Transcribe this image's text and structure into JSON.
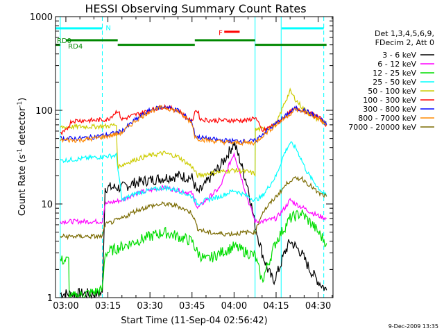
{
  "chart_data": {
    "type": "line",
    "title": "HESSI Observing Summary Count Rates",
    "xlabel": "Start Time (11-Sep-04 02:56:42)",
    "ylabel_parts": [
      "Count Rate (s",
      "-1",
      " detector",
      "-1",
      ")"
    ],
    "y_scale": "log",
    "ylim": [
      1,
      1000
    ],
    "xlim_minutes": [
      -3.7,
      95.3
    ],
    "x_ticks": [
      {
        "value": 0,
        "label": "03:00"
      },
      {
        "value": 15,
        "label": "03:15"
      },
      {
        "value": 30,
        "label": "03:30"
      },
      {
        "value": 45,
        "label": "03:45"
      },
      {
        "value": 60,
        "label": "04:00"
      },
      {
        "value": 75,
        "label": "04:15"
      },
      {
        "value": 90,
        "label": "04:30"
      }
    ],
    "y_ticks": [
      {
        "value": 1,
        "label": "1"
      },
      {
        "value": 10,
        "label": "10"
      },
      {
        "value": 100,
        "label": "100"
      },
      {
        "value": 1000,
        "label": "1000"
      }
    ],
    "legend": {
      "placement": "right",
      "header": [
        "Det 1,3,4,5,6,9,",
        "FDecim 2, Att 0"
      ],
      "items": [
        {
          "label": "3 - 6 keV",
          "color": "#000000"
        },
        {
          "label": "6 - 12 keV",
          "color": "#ff00ff"
        },
        {
          "label": "12 - 25 keV",
          "color": "#00dd00"
        },
        {
          "label": "25 - 50 keV",
          "color": "#00ffff"
        },
        {
          "label": "50 - 100 keV",
          "color": "#cccc00"
        },
        {
          "label": "100 - 300 keV",
          "color": "#ff0000"
        },
        {
          "label": "300 - 800 keV",
          "color": "#0000ff"
        },
        {
          "label": "800 - 7000 keV",
          "color": "#ff8800"
        },
        {
          "label": "7000 - 20000 keV",
          "color": "#7a6a00"
        }
      ]
    },
    "series": [
      {
        "name": "3 - 6 keV",
        "color": "#000000",
        "x": [
          -2,
          13,
          14,
          20,
          25,
          30,
          35,
          40,
          45,
          47,
          49,
          52,
          55,
          58,
          60,
          62,
          65,
          67.5,
          70,
          72,
          74,
          76,
          78,
          80,
          82,
          84,
          87,
          90,
          93
        ],
        "y": [
          1.1,
          1.1,
          15,
          15,
          17,
          18,
          19,
          20,
          19,
          13,
          15,
          20,
          25,
          35,
          45,
          30,
          15,
          6,
          3,
          2,
          1.5,
          2,
          3,
          4,
          3.5,
          3,
          2,
          1.5,
          1.2
        ]
      },
      {
        "name": "6 - 12 keV",
        "color": "#ff00ff",
        "x": [
          -2,
          13,
          14,
          20,
          25,
          30,
          35,
          40,
          45,
          47,
          50,
          55,
          58,
          60,
          62,
          65,
          67.5,
          70,
          75,
          78,
          80,
          82,
          85,
          88,
          90,
          93
        ],
        "y": [
          6.5,
          6.5,
          10,
          11,
          13,
          14,
          15,
          14,
          13,
          9,
          11,
          15,
          25,
          35,
          22,
          11,
          6.5,
          6.5,
          7,
          9,
          11,
          10,
          9,
          8,
          7.5,
          7
        ]
      },
      {
        "name": "12 - 25 keV",
        "color": "#00dd00",
        "x": [
          -2,
          1,
          1.2,
          13,
          14,
          20,
          25,
          30,
          35,
          40,
          45,
          47,
          50,
          55,
          60,
          65,
          67.5,
          70,
          75,
          80,
          84,
          88,
          90,
          93
        ],
        "y": [
          2.5,
          2.5,
          1,
          1.2,
          3,
          3.5,
          4,
          4.5,
          5,
          4.5,
          4,
          3,
          2.5,
          3,
          3.5,
          3,
          2.8,
          1.5,
          4,
          7,
          8,
          6,
          5,
          3.8
        ]
      },
      {
        "name": "25 - 50 keV",
        "color": "#00ffff",
        "x": [
          -2,
          13,
          18,
          20,
          25,
          30,
          35,
          40,
          45,
          47,
          50,
          55,
          60,
          65,
          67.5,
          70,
          75,
          78,
          80,
          82,
          84,
          86,
          88,
          90,
          93
        ],
        "y": [
          29,
          32,
          33,
          11,
          13,
          14,
          15,
          14,
          12,
          10,
          11,
          12,
          14,
          12,
          11,
          12,
          20,
          35,
          45,
          40,
          30,
          22,
          18,
          15,
          12
        ]
      },
      {
        "name": "50 - 100 keV",
        "color": "#cccc00",
        "x": [
          -2,
          5,
          10,
          15,
          18,
          18.5,
          25,
          30,
          35,
          40,
          45,
          47,
          50,
          55,
          60,
          65,
          67.5,
          67.6,
          72,
          75,
          78,
          80,
          82,
          84,
          87,
          90,
          93
        ],
        "y": [
          66,
          67,
          67,
          68,
          70,
          25,
          30,
          33,
          35,
          32,
          25,
          20,
          21,
          22,
          23,
          22,
          21,
          62,
          65,
          70,
          120,
          160,
          130,
          110,
          90,
          80,
          75
        ]
      },
      {
        "name": "100 - 300 keV",
        "color": "#ff0000",
        "x": [
          -2,
          0,
          2,
          5,
          10,
          15,
          18.5,
          20,
          25,
          30,
          35,
          40,
          45,
          46,
          47,
          48,
          52,
          60,
          65,
          67.5,
          70,
          75,
          80,
          82,
          85,
          90,
          93
        ],
        "y": [
          55,
          60,
          77,
          78,
          78,
          80,
          100,
          80,
          90,
          100,
          110,
          100,
          75,
          98,
          99,
          80,
          78,
          78,
          78,
          85,
          60,
          72,
          95,
          105,
          100,
          85,
          70
        ]
      },
      {
        "name": "300 - 800 keV",
        "color": "#0000ff",
        "x": [
          -2,
          5,
          10,
          15,
          18.5,
          20,
          25,
          30,
          35,
          40,
          45,
          46,
          47,
          50,
          55,
          60,
          65,
          67.5,
          70,
          75,
          80,
          82,
          85,
          90,
          93
        ],
        "y": [
          50,
          50,
          52,
          55,
          58,
          60,
          80,
          100,
          110,
          100,
          75,
          55,
          52,
          50,
          48,
          47,
          47,
          47,
          55,
          72,
          95,
          105,
          100,
          85,
          70
        ]
      },
      {
        "name": "800 - 7000 keV",
        "color": "#ff8800",
        "x": [
          -2,
          5,
          10,
          15,
          18.5,
          20,
          25,
          30,
          35,
          40,
          45,
          46,
          47,
          50,
          55,
          60,
          65,
          67.5,
          70,
          75,
          80,
          82,
          85,
          90,
          93
        ],
        "y": [
          48,
          48,
          50,
          53,
          56,
          58,
          78,
          98,
          108,
          98,
          73,
          53,
          50,
          48,
          46,
          45,
          45,
          45,
          53,
          70,
          92,
          102,
          97,
          82,
          68
        ]
      },
      {
        "name": "7000 - 20000 keV",
        "color": "#7a6a00",
        "x": [
          -2,
          13,
          14,
          20,
          25,
          30,
          35,
          40,
          45,
          47,
          50,
          55,
          60,
          65,
          67.5,
          70,
          75,
          80,
          84,
          88,
          90,
          93
        ],
        "y": [
          4.5,
          4.5,
          6,
          7,
          8.5,
          9.5,
          10,
          9.5,
          8,
          5.5,
          5,
          4.8,
          4.8,
          5,
          5,
          8,
          12,
          18,
          19,
          15,
          13,
          12
        ]
      }
    ],
    "vertical_lines": [
      {
        "x": -2,
        "style": "solid",
        "color": "#00ffff"
      },
      {
        "x": 13,
        "style": "dashed",
        "color": "#00ffff"
      },
      {
        "x": 67.5,
        "style": "solid",
        "color": "#00ffff"
      },
      {
        "x": 76.8,
        "style": "solid",
        "color": "#00ffff"
      },
      {
        "x": 92,
        "style": "dashed",
        "color": "#00ffff"
      }
    ],
    "status_bars": [
      {
        "x0": -3.7,
        "x1": 13,
        "y": 750,
        "color": "#00ffff"
      },
      {
        "x0": 77,
        "x1": 92,
        "y": 750,
        "color": "#00ffff"
      },
      {
        "x0": 0,
        "x1": 18.5,
        "y": 560,
        "color": "#008800"
      },
      {
        "x0": 18.5,
        "x1": 46,
        "y": 500,
        "color": "#008800"
      },
      {
        "x0": 46,
        "x1": 67.5,
        "y": 560,
        "color": "#008800"
      },
      {
        "x0": 67.5,
        "x1": 93,
        "y": 500,
        "color": "#008800"
      },
      {
        "x0": -3.7,
        "x1": -2,
        "y": 500,
        "color": "#008800"
      },
      {
        "x0": 56.5,
        "x1": 62,
        "y": 690,
        "color": "#ff0000"
      }
    ],
    "annotations": [
      {
        "text": "N",
        "x": 14.2,
        "y": 770,
        "color": "#00ffff"
      },
      {
        "text": "F",
        "x": 54.5,
        "y": 680,
        "color": "#ff0000"
      },
      {
        "text": "RD0",
        "x": -3.2,
        "y": 560,
        "color": "#008800"
      },
      {
        "text": "RD4",
        "x": 0.8,
        "y": 490,
        "color": "#008800"
      }
    ],
    "footer_date": "9-Dec-2009 13:35"
  }
}
